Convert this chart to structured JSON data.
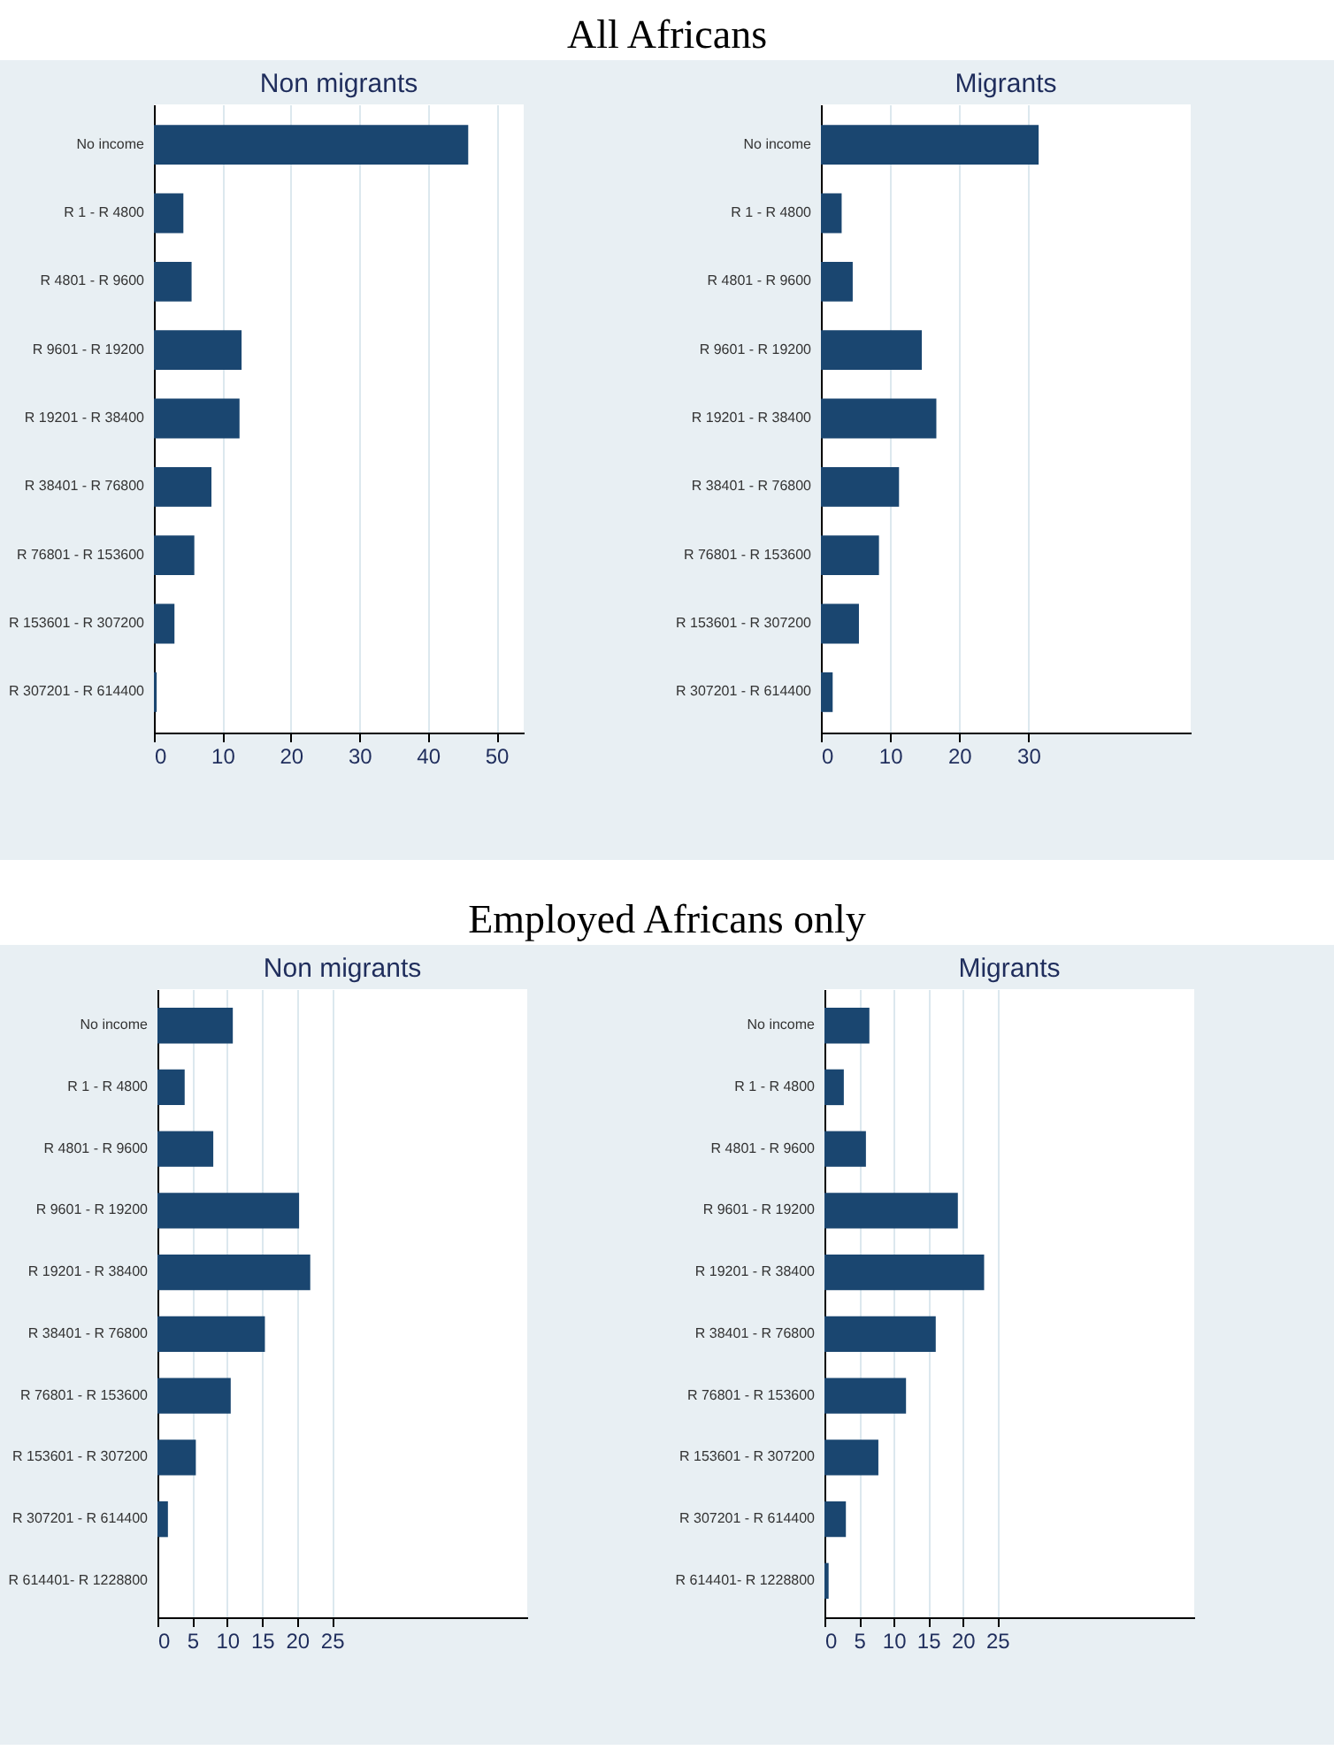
{
  "chart_data": [
    {
      "type": "bar",
      "orientation": "horizontal",
      "title": "Non migrants",
      "annotations": [
        "All Africans"
      ],
      "categories": [
        "No income",
        "R 1 - R 4800",
        "R 4801 - R 9600",
        "R 9601 - R 19200",
        "R 19201 - R 38400",
        "R 38401 - R 76800",
        "R 76801 - R 153600",
        "R 153601 - R 307200",
        "R 307201 - R 614400"
      ],
      "values": [
        45.9,
        4.3,
        5.5,
        12.8,
        12.5,
        8.4,
        5.9,
        3.0,
        0.4
      ],
      "color": "#1a4670",
      "xlim": [
        0,
        54
      ],
      "xticks": [
        0,
        10,
        20,
        30,
        40,
        50
      ],
      "grid": "x"
    },
    {
      "type": "bar",
      "orientation": "horizontal",
      "title": "Migrants",
      "categories": [
        "No income",
        "R 1 - R 4800",
        "R 4801 - R 9600",
        "R 9601 - R 19200",
        "R 19201 - R 38400",
        "R 38401 - R 76800",
        "R 76801 - R 153600",
        "R 153601 - R 307200",
        "R 307201 - R 614400"
      ],
      "values": [
        31.5,
        3.0,
        4.6,
        14.6,
        16.7,
        11.3,
        8.4,
        5.5,
        1.7
      ],
      "color": "#1a4670",
      "xlim": [
        0,
        53.5
      ],
      "xticks": [
        0,
        10,
        20,
        30
      ],
      "grid": "x"
    },
    {
      "type": "bar",
      "orientation": "horizontal",
      "title": "Non migrants",
      "annotations": [
        "Employed Africans only"
      ],
      "categories": [
        "No income",
        "R 1 - R 4800",
        "R 4801 - R 9600",
        "R 9601 - R 19200",
        "R 19201 - R 38400",
        "R 38401 - R 76800",
        "R 76801 - R 153600",
        "R 153601 - R 307200",
        "R 307201 - R 614400",
        "R 614401- R 1228800"
      ],
      "values": [
        10.8,
        3.9,
        8.0,
        20.3,
        21.9,
        15.4,
        10.5,
        5.5,
        1.5,
        0
      ],
      "color": "#1a4670",
      "xlim": [
        0,
        53
      ],
      "xticks": [
        0,
        5,
        10,
        15,
        20,
        25
      ],
      "grid": "x"
    },
    {
      "type": "bar",
      "orientation": "horizontal",
      "title": "Migrants",
      "categories": [
        "No income",
        "R 1 - R 4800",
        "R 4801 - R 9600",
        "R 9601 - R 19200",
        "R 19201 - R 38400",
        "R 38401 - R 76800",
        "R 76801 - R 153600",
        "R 153601 - R 307200",
        "R 307201 - R 614400",
        "R 614401- R 1228800"
      ],
      "values": [
        6.5,
        2.8,
        6.0,
        19.3,
        23.1,
        16.1,
        11.8,
        7.8,
        3.1,
        0.6
      ],
      "color": "#1a4670",
      "xlim": [
        0,
        53.5
      ],
      "xticks": [
        0,
        5,
        10,
        15,
        20,
        25
      ],
      "grid": "x"
    }
  ]
}
